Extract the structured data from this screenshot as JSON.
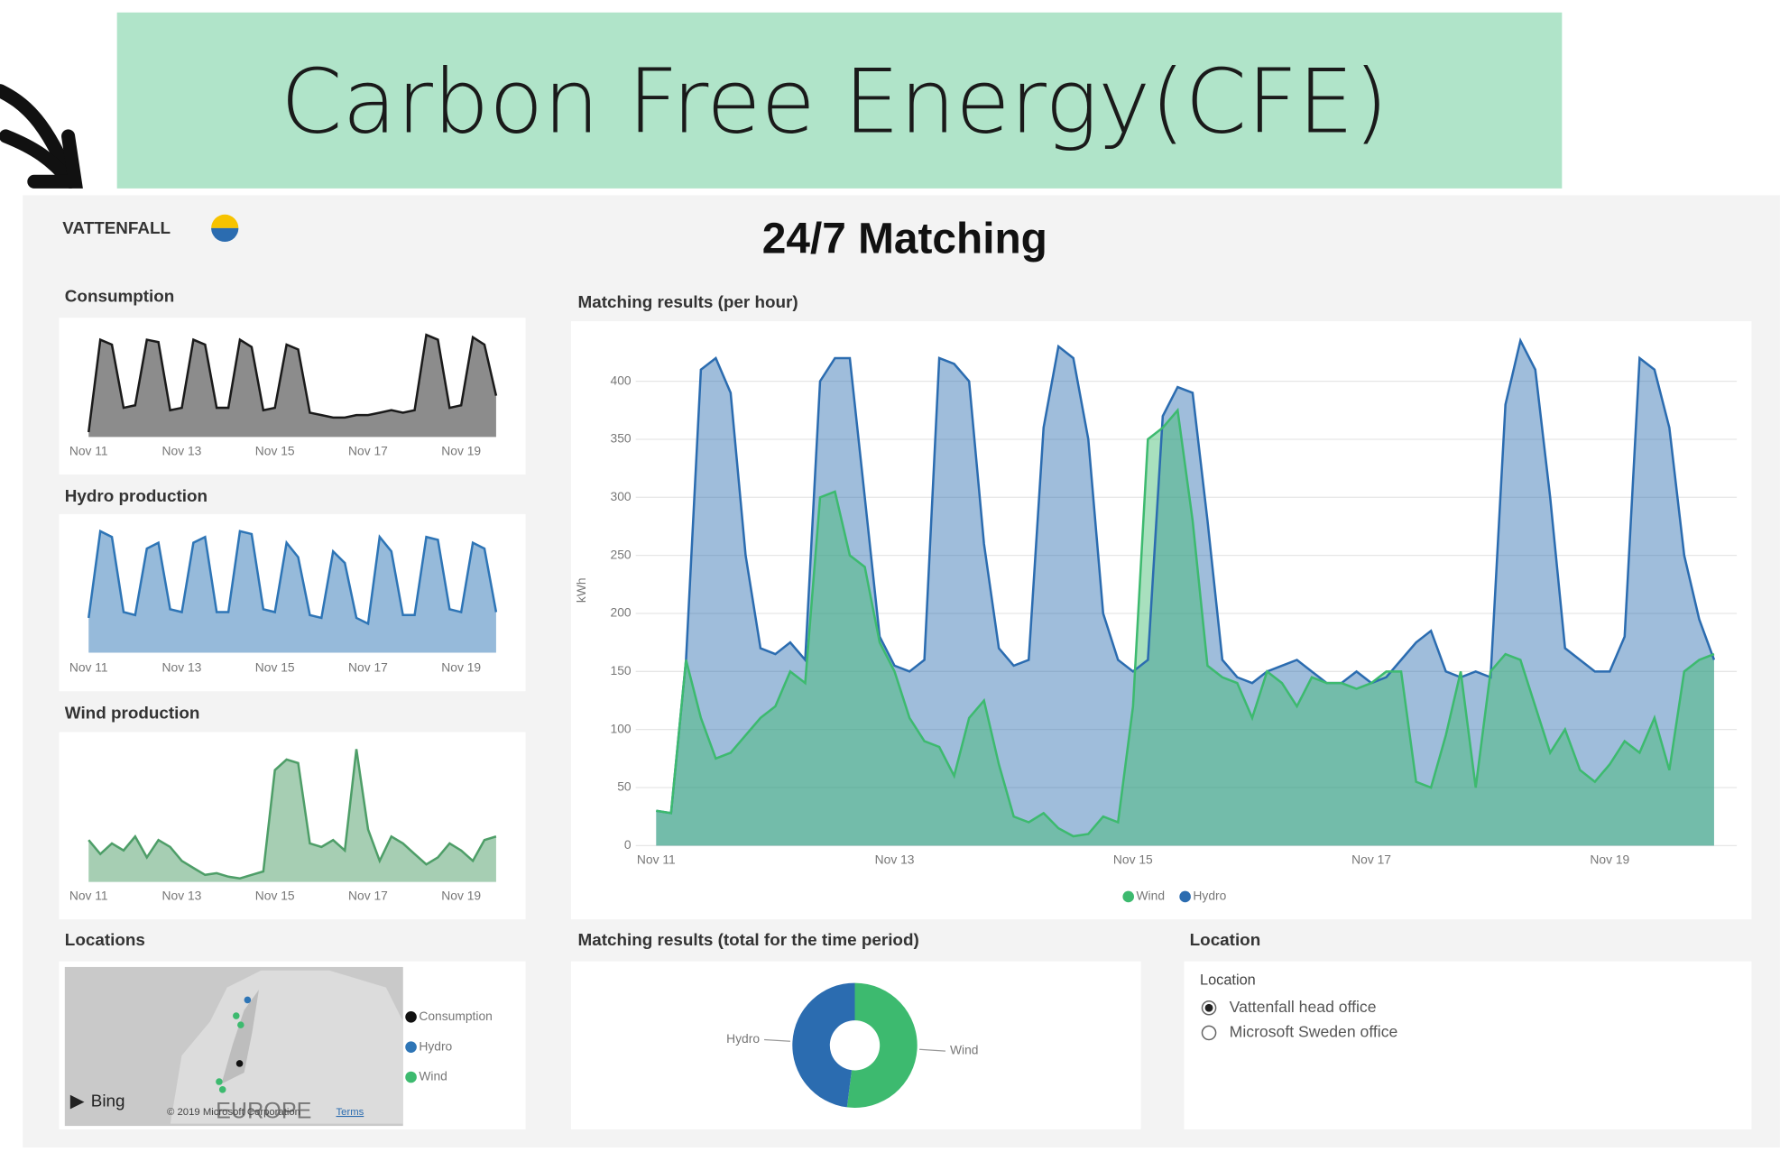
{
  "banner": {
    "title": "Carbon Free Energy(CFE)"
  },
  "header": {
    "logo": "VATTENFALL",
    "title": "24/7 Matching"
  },
  "chart_data": [
    {
      "type": "area",
      "title": "Consumption",
      "color": "#1a1a1a",
      "categories": [
        "Nov 11",
        null,
        null,
        null,
        null,
        null,
        null,
        null,
        "Nov 13",
        null,
        null,
        null,
        null,
        null,
        null,
        null,
        "Nov 15",
        null,
        null,
        null,
        null,
        null,
        null,
        null,
        "Nov 17",
        null,
        null,
        null,
        null,
        null,
        null,
        null,
        "Nov 19",
        null,
        null,
        null
      ],
      "values": [
        20,
        400,
        380,
        120,
        130,
        400,
        390,
        110,
        120,
        400,
        380,
        120,
        120,
        400,
        370,
        110,
        120,
        380,
        360,
        100,
        90,
        80,
        80,
        90,
        90,
        100,
        110,
        100,
        110,
        420,
        400,
        120,
        130,
        410,
        380,
        170
      ]
    },
    {
      "type": "area",
      "title": "Hydro production",
      "color": "#2e75b6",
      "categories": [
        "Nov 11",
        null,
        null,
        null,
        null,
        null,
        null,
        null,
        "Nov 13",
        null,
        null,
        null,
        null,
        null,
        null,
        null,
        "Nov 15",
        null,
        null,
        null,
        null,
        null,
        null,
        null,
        "Nov 17",
        null,
        null,
        null,
        null,
        null,
        null,
        null,
        "Nov 19",
        null,
        null,
        null
      ],
      "values": [
        120,
        420,
        400,
        140,
        130,
        360,
        380,
        150,
        140,
        380,
        400,
        140,
        140,
        420,
        410,
        150,
        140,
        380,
        330,
        130,
        120,
        350,
        310,
        120,
        100,
        400,
        350,
        130,
        130,
        400,
        390,
        150,
        140,
        380,
        360,
        140
      ]
    },
    {
      "type": "area",
      "title": "Wind production",
      "color": "#4e9e68",
      "categories": [
        "Nov 11",
        null,
        null,
        null,
        null,
        null,
        null,
        null,
        "Nov 13",
        null,
        null,
        null,
        null,
        null,
        null,
        null,
        "Nov 15",
        null,
        null,
        null,
        null,
        null,
        null,
        null,
        "Nov 17",
        null,
        null,
        null,
        null,
        null,
        null,
        null,
        "Nov 19",
        null,
        null,
        null
      ],
      "values": [
        120,
        80,
        110,
        90,
        130,
        70,
        120,
        100,
        60,
        40,
        20,
        25,
        15,
        10,
        20,
        30,
        320,
        350,
        340,
        110,
        100,
        120,
        90,
        380,
        150,
        60,
        130,
        110,
        80,
        50,
        70,
        110,
        90,
        60,
        120,
        130
      ]
    },
    {
      "type": "area",
      "title": "Matching results (per hour)",
      "ylabel": "kWh",
      "grid": true,
      "legend": "bottom",
      "ylim": [
        0,
        440
      ],
      "yticks": [
        0,
        50,
        100,
        150,
        200,
        250,
        300,
        350,
        400
      ],
      "categories": [
        "Nov 11",
        null,
        null,
        null,
        null,
        null,
        null,
        null,
        null,
        null,
        null,
        null,
        null,
        null,
        null,
        null,
        "Nov 13",
        null,
        null,
        null,
        null,
        null,
        null,
        null,
        null,
        null,
        null,
        null,
        null,
        null,
        null,
        null,
        "Nov 15",
        null,
        null,
        null,
        null,
        null,
        null,
        null,
        null,
        null,
        null,
        null,
        null,
        null,
        null,
        null,
        "Nov 17",
        null,
        null,
        null,
        null,
        null,
        null,
        null,
        null,
        null,
        null,
        null,
        null,
        null,
        null,
        null,
        "Nov 19",
        null,
        null,
        null,
        null,
        null,
        null,
        null
      ],
      "series": [
        {
          "name": "Hydro",
          "color": "#2b6cb0",
          "values": [
            30,
            28,
            160,
            410,
            420,
            390,
            250,
            170,
            165,
            175,
            160,
            400,
            420,
            420,
            300,
            180,
            155,
            150,
            160,
            420,
            415,
            400,
            260,
            170,
            155,
            160,
            360,
            430,
            420,
            350,
            200,
            160,
            150,
            160,
            370,
            395,
            390,
            280,
            160,
            145,
            140,
            150,
            155,
            160,
            150,
            140,
            140,
            150,
            140,
            145,
            160,
            175,
            185,
            150,
            145,
            150,
            145,
            380,
            435,
            410,
            300,
            170,
            160,
            150,
            150,
            180,
            420,
            410,
            360,
            250,
            195,
            160
          ]
        },
        {
          "name": "Wind",
          "color": "#3dba6f",
          "values": [
            30,
            28,
            160,
            110,
            75,
            80,
            95,
            110,
            120,
            150,
            140,
            300,
            305,
            250,
            240,
            175,
            150,
            110,
            90,
            85,
            60,
            110,
            125,
            70,
            25,
            20,
            28,
            15,
            8,
            10,
            25,
            20,
            120,
            350,
            360,
            375,
            280,
            155,
            145,
            140,
            110,
            150,
            140,
            120,
            145,
            140,
            140,
            135,
            140,
            150,
            150,
            55,
            50,
            95,
            150,
            50,
            150,
            165,
            160,
            120,
            80,
            100,
            65,
            55,
            70,
            90,
            80,
            110,
            65,
            150,
            160,
            165
          ]
        }
      ]
    },
    {
      "type": "donut",
      "title": "Matching results (total for the time period)",
      "categories": [
        "Wind",
        "Hydro"
      ],
      "values": [
        52,
        48
      ],
      "colors": [
        "#3dba6f",
        "#2b6cb0"
      ]
    }
  ],
  "locations": {
    "title": "Locations",
    "brand": "Bing",
    "attribution": "© 2019 Microsoft Corporation",
    "terms": "Terms",
    "map_label": "EUROPE",
    "legend": [
      {
        "name": "Consumption",
        "color": "#111111"
      },
      {
        "name": "Hydro",
        "color": "#2e75b6"
      },
      {
        "name": "Wind",
        "color": "#3dba6f"
      }
    ]
  },
  "location_slicer": {
    "title": "Location",
    "header": "Location",
    "options": [
      {
        "label": "Vattenfall head office",
        "selected": true
      },
      {
        "label": "Microsoft Sweden office",
        "selected": false
      }
    ]
  }
}
